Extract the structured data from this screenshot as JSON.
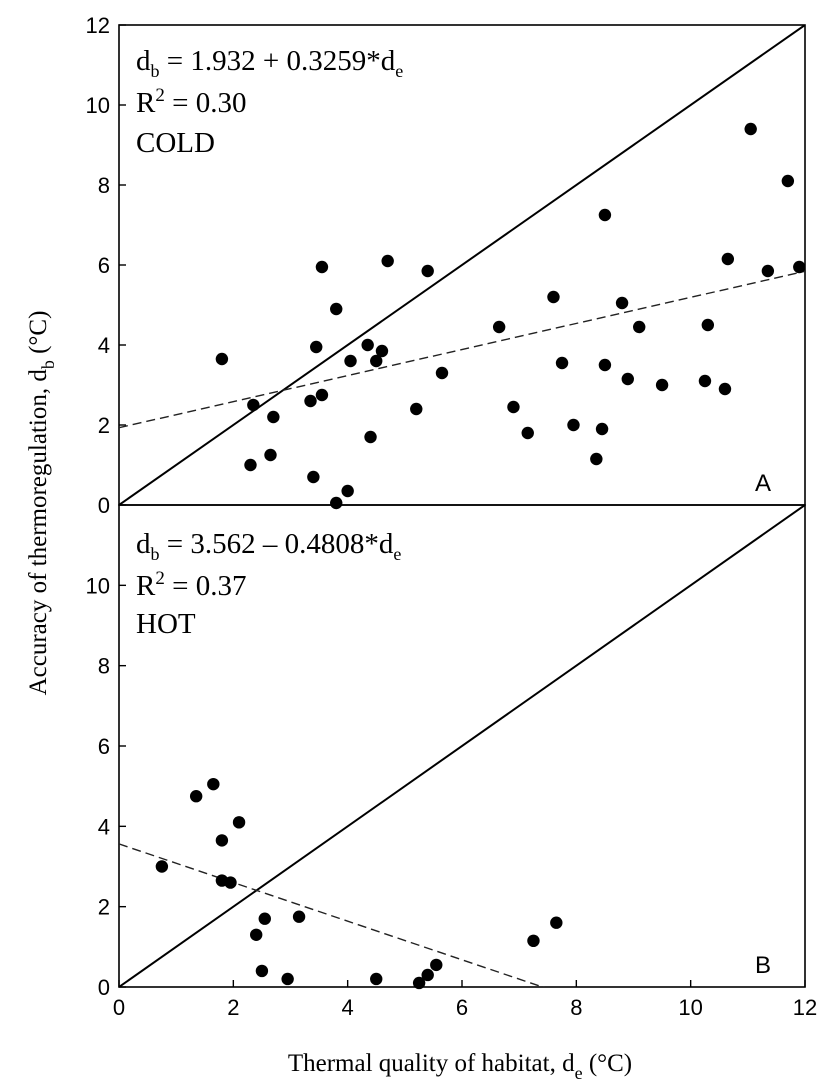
{
  "figure": {
    "ylabel": {
      "main": "Accuracy of thermoregulation, d",
      "sub": "b",
      "unit": " (°C)"
    },
    "xlabel": {
      "main": "Thermal quality of habitat, d",
      "sub": "e",
      "unit": " (°C)"
    },
    "x_ticks": [
      "0",
      "2",
      "4",
      "6",
      "8",
      "10",
      "12"
    ]
  },
  "chart_data": [
    {
      "type": "scatter",
      "panel": "A",
      "annotations": {
        "equation_left": "d",
        "equation_left_sub": "b",
        "equation_mid": " = 1.932 + 0.3259*d",
        "equation_right_sub": "e",
        "r2_label": "R",
        "r2_sup": "2",
        "r2_value": " = 0.30",
        "condition": "COLD"
      },
      "xlim": [
        0,
        12
      ],
      "ylim": [
        0,
        12
      ],
      "y_ticks": [
        "0",
        "2",
        "4",
        "6",
        "8",
        "10",
        "12"
      ],
      "reference_line": {
        "style": "solid",
        "x": [
          0,
          12
        ],
        "y": [
          0,
          12
        ]
      },
      "regression_line": {
        "style": "dashed",
        "intercept": 1.932,
        "slope": 0.3259
      },
      "points": [
        [
          1.8,
          3.65
        ],
        [
          2.35,
          2.5
        ],
        [
          2.3,
          1.0
        ],
        [
          2.65,
          1.25
        ],
        [
          2.7,
          2.2
        ],
        [
          3.35,
          2.6
        ],
        [
          3.4,
          0.7
        ],
        [
          3.45,
          3.95
        ],
        [
          3.55,
          2.75
        ],
        [
          3.55,
          5.95
        ],
        [
          3.8,
          4.9
        ],
        [
          3.8,
          0.05
        ],
        [
          4.0,
          0.35
        ],
        [
          4.05,
          3.6
        ],
        [
          4.35,
          4.0
        ],
        [
          4.4,
          1.7
        ],
        [
          4.5,
          3.6
        ],
        [
          4.6,
          3.85
        ],
        [
          4.7,
          6.1
        ],
        [
          5.4,
          5.85
        ],
        [
          5.2,
          2.4
        ],
        [
          5.65,
          3.3
        ],
        [
          6.65,
          4.45
        ],
        [
          6.9,
          2.45
        ],
        [
          7.15,
          1.8
        ],
        [
          7.6,
          5.2
        ],
        [
          7.75,
          3.55
        ],
        [
          7.95,
          2.0
        ],
        [
          8.35,
          1.15
        ],
        [
          8.45,
          1.9
        ],
        [
          8.5,
          7.25
        ],
        [
          8.5,
          3.5
        ],
        [
          8.8,
          5.05
        ],
        [
          8.9,
          3.15
        ],
        [
          9.1,
          4.45
        ],
        [
          9.5,
          3.0
        ],
        [
          10.25,
          3.1
        ],
        [
          10.3,
          4.5
        ],
        [
          10.6,
          2.9
        ],
        [
          10.65,
          6.15
        ],
        [
          11.05,
          9.4
        ],
        [
          11.35,
          5.85
        ],
        [
          11.7,
          8.1
        ],
        [
          11.9,
          5.95
        ]
      ]
    },
    {
      "type": "scatter",
      "panel": "B",
      "annotations": {
        "equation_left": "d",
        "equation_left_sub": "b",
        "equation_mid": " = 3.562 – 0.4808*d",
        "equation_right_sub": "e",
        "r2_label": "R",
        "r2_sup": "2",
        "r2_value": " = 0.37",
        "condition": "HOT"
      },
      "xlim": [
        0,
        12
      ],
      "ylim": [
        0,
        12
      ],
      "y_ticks": [
        "0",
        "2",
        "4",
        "6",
        "8",
        "10"
      ],
      "reference_line": {
        "style": "solid",
        "x": [
          0,
          12
        ],
        "y": [
          0,
          12
        ]
      },
      "regression_line": {
        "style": "dashed",
        "intercept": 3.562,
        "slope": -0.4808
      },
      "points": [
        [
          0.75,
          3.0
        ],
        [
          1.35,
          4.75
        ],
        [
          1.65,
          5.05
        ],
        [
          1.8,
          3.65
        ],
        [
          1.8,
          2.65
        ],
        [
          1.95,
          2.6
        ],
        [
          2.1,
          4.1
        ],
        [
          2.4,
          1.3
        ],
        [
          2.5,
          0.4
        ],
        [
          2.55,
          1.7
        ],
        [
          2.95,
          0.2
        ],
        [
          3.15,
          1.75
        ],
        [
          4.5,
          0.2
        ],
        [
          5.25,
          0.1
        ],
        [
          5.4,
          0.3
        ],
        [
          5.55,
          0.55
        ],
        [
          7.25,
          1.15
        ],
        [
          7.65,
          1.6
        ]
      ]
    }
  ]
}
